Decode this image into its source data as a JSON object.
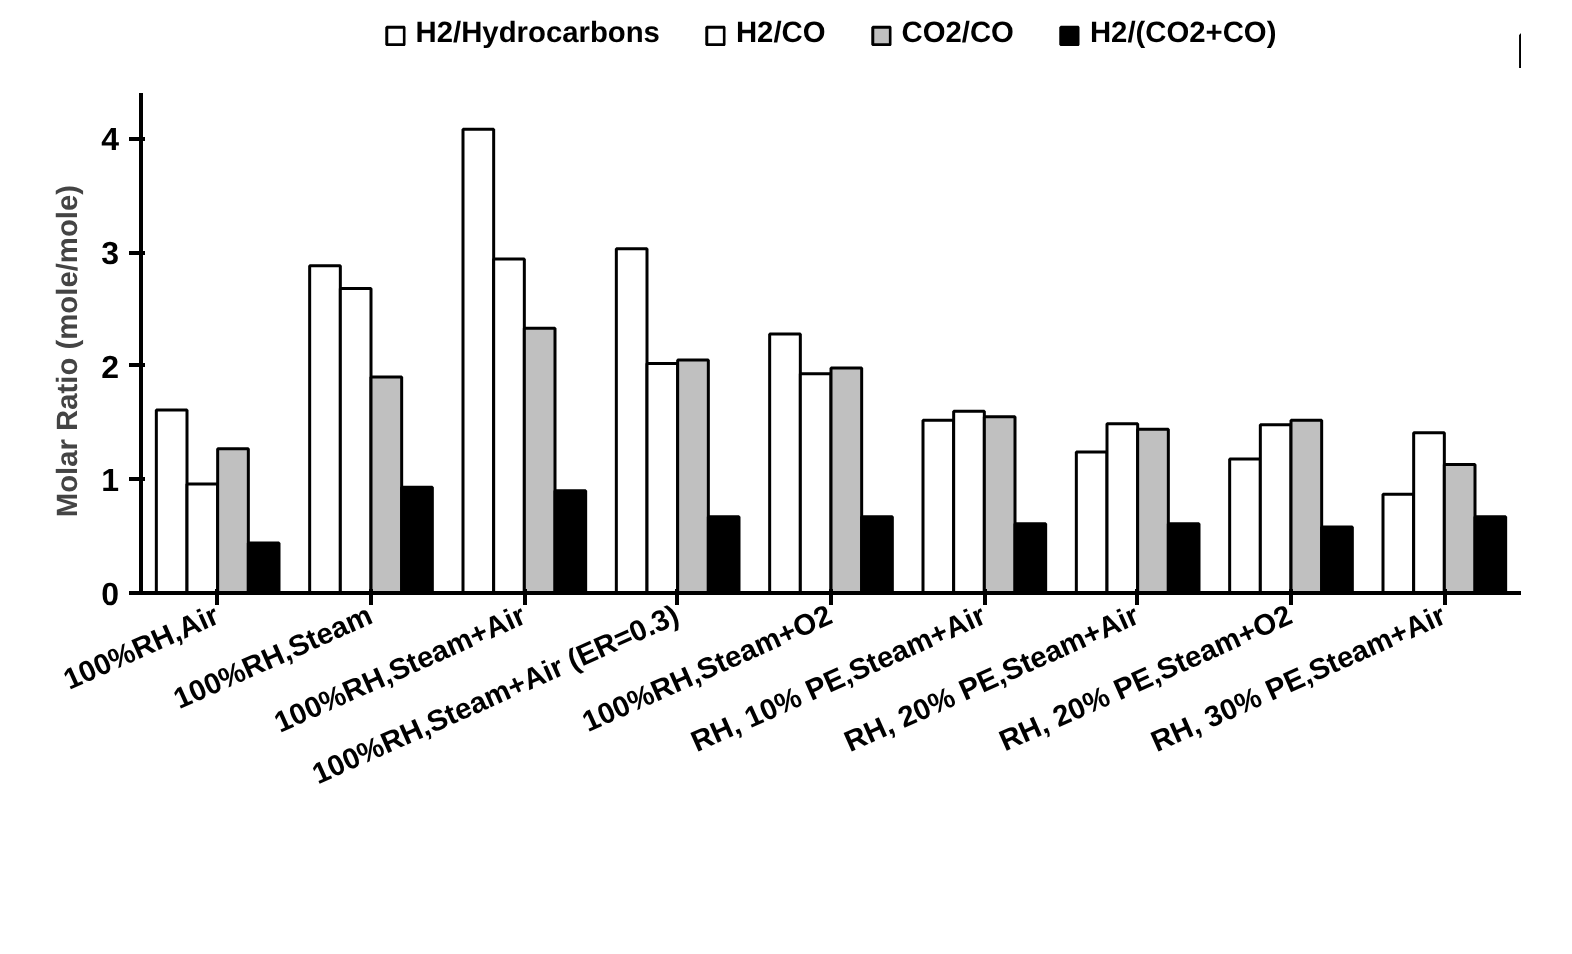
{
  "chart_data": {
    "type": "bar",
    "ylabel": "Molar Ratio   (mole/mole)",
    "categories": [
      "100%RH,Air",
      "100%RH,Steam",
      "100%RH,Steam+Air",
      "100%RH,Steam+Air (ER=0.3)",
      "100%RH,Steam+O2",
      "RH, 10% PE,Steam+Air",
      "RH, 20% PE,Steam+Air",
      "RH, 20% PE,Steam+O2",
      "RH, 30% PE,Steam+Air"
    ],
    "series": [
      {
        "name": "H2/Hydrocarbons",
        "color": "#ffffff",
        "values": [
          1.61,
          2.88,
          4.08,
          3.03,
          2.28,
          1.52,
          1.24,
          1.18,
          0.87
        ]
      },
      {
        "name": "H2/CO",
        "color": "#ffffff",
        "values": [
          0.96,
          2.68,
          2.94,
          2.02,
          1.93,
          1.6,
          1.49,
          1.48,
          1.41
        ]
      },
      {
        "name": "CO2/CO",
        "color": "#c0c0c0",
        "values": [
          1.27,
          1.9,
          2.33,
          2.05,
          1.98,
          1.55,
          1.44,
          1.52,
          1.13
        ]
      },
      {
        "name": "H2/(CO2+CO)",
        "color": "#000000",
        "values": [
          0.44,
          0.93,
          0.9,
          0.67,
          0.67,
          0.61,
          0.61,
          0.58,
          0.67
        ]
      }
    ],
    "ylim": [
      0,
      4.4
    ],
    "yticks": [
      0,
      1,
      2,
      3,
      4
    ],
    "grid": false,
    "legend": "top"
  }
}
